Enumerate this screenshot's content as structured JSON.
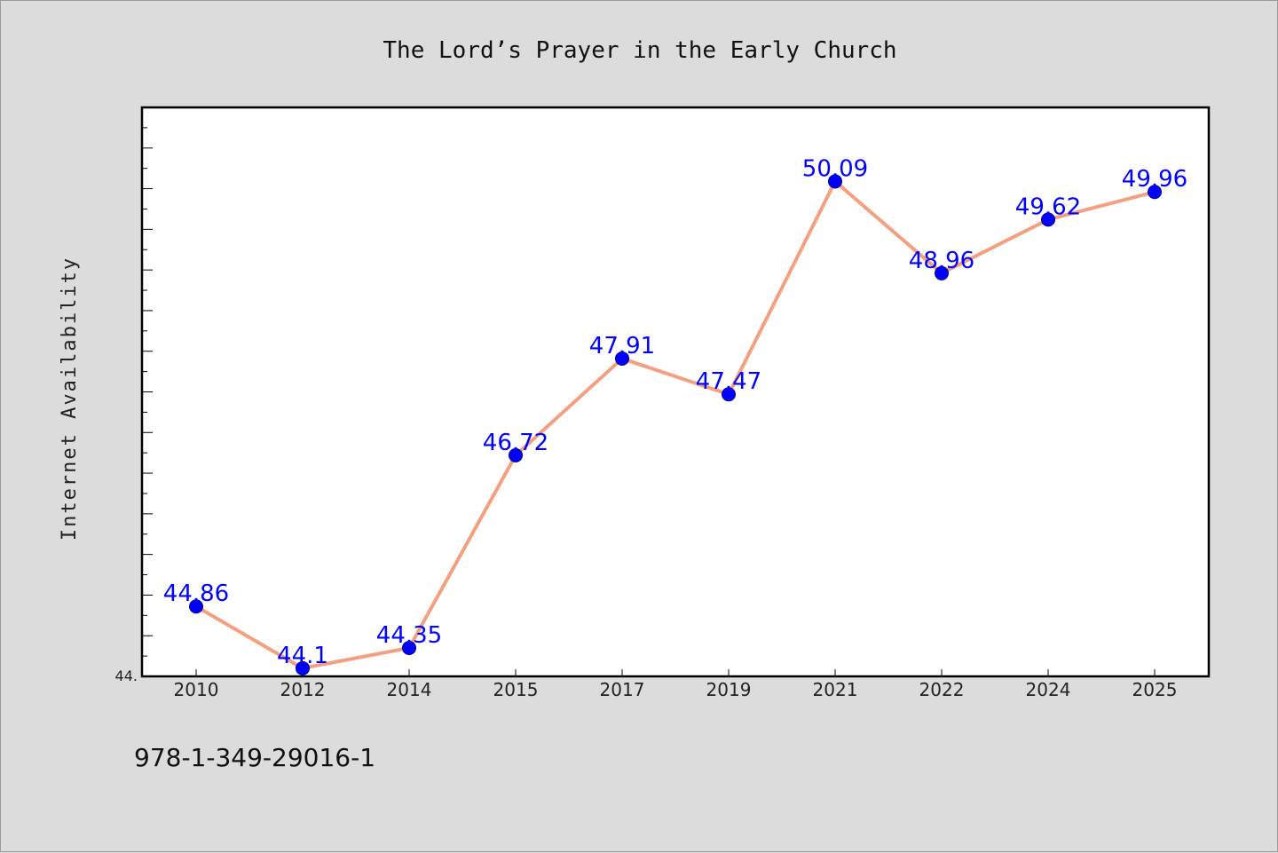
{
  "chart_data": {
    "type": "line",
    "title": "The Lord’s Prayer in the Early Church",
    "xlabel": "",
    "ylabel": "Internet Availability",
    "categories": [
      "2010",
      "2012",
      "2014",
      "2015",
      "2017",
      "2019",
      "2021",
      "2022",
      "2024",
      "2025"
    ],
    "series": [
      {
        "values": [
          44.86,
          44.1,
          44.35,
          46.72,
          47.91,
          47.47,
          50.09,
          48.96,
          49.62,
          49.96
        ],
        "data_labels": [
          "44.86",
          "44.1",
          "44.35",
          "46.72",
          "47.91",
          "47.47",
          "50.09",
          "48.96",
          "49.62",
          "49.96"
        ]
      }
    ],
    "y_tick_label": "44.",
    "ylim": [
      44.0,
      51.0
    ],
    "grid": false,
    "legend": "none",
    "colors": {
      "line": "#f4a07f",
      "marker": "#0000ff",
      "data_label": "#0000ff",
      "background": "#dcdcdc",
      "plot_background": "#ffffff"
    }
  },
  "footer_text": "978-1-349-29016-1"
}
